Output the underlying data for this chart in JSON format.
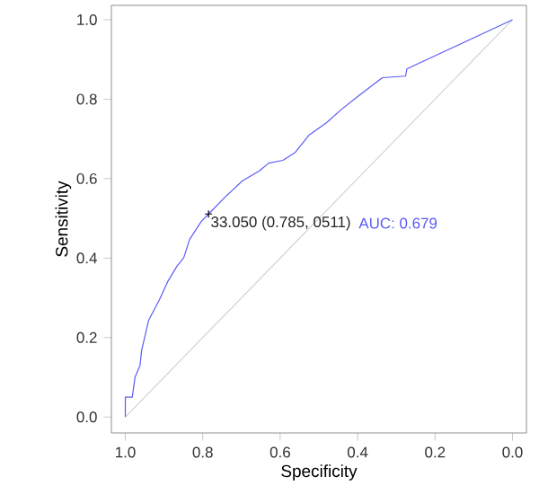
{
  "chart_data": {
    "type": "line",
    "xlabel": "Specificity",
    "ylabel": "Sensitivity",
    "xlim": [
      1.036,
      -0.036
    ],
    "ylim": [
      -0.04,
      1.036
    ],
    "xticks": [
      {
        "value": 1,
        "label": "1.0"
      },
      {
        "value": 0.8,
        "label": "0.8"
      },
      {
        "value": 0.6,
        "label": "0.6"
      },
      {
        "value": 0.4,
        "label": "0.4"
      },
      {
        "value": 0.2,
        "label": "0.2"
      },
      {
        "value": 0,
        "label": "0.0"
      }
    ],
    "yticks": [
      {
        "value": 0,
        "label": "0.0"
      },
      {
        "value": 0.2,
        "label": "0.2"
      },
      {
        "value": 0.4,
        "label": "0.4"
      },
      {
        "value": 0.6,
        "label": "0.6"
      },
      {
        "value": 0.8,
        "label": "0.8"
      },
      {
        "value": 1,
        "label": "1.0"
      }
    ],
    "grid": false,
    "series": [
      {
        "color": "#d0d0d8",
        "x": [
          1,
          0
        ],
        "values": [
          0,
          1
        ]
      },
      {
        "color": "#5b5bf5",
        "x": [
          1,
          1,
          0.982,
          0.975,
          0.962,
          0.958,
          0.94,
          0.912,
          0.891,
          0.867,
          0.849,
          0.834,
          0.804,
          0.785,
          0.744,
          0.698,
          0.653,
          0.63,
          0.593,
          0.562,
          0.525,
          0.48,
          0.442,
          0.397,
          0.336,
          0.276,
          0.273,
          0
        ],
        "values": [
          0,
          0.05,
          0.05,
          0.1,
          0.13,
          0.167,
          0.243,
          0.295,
          0.34,
          0.379,
          0.401,
          0.447,
          0.492,
          0.511,
          0.552,
          0.594,
          0.62,
          0.639,
          0.646,
          0.665,
          0.71,
          0.741,
          0.774,
          0.809,
          0.854,
          0.858,
          0.876,
          1
        ]
      },
      {
        "type": "scatter",
        "color": "#000000",
        "marker": "cross",
        "x": [
          0.785
        ],
        "values": [
          0.511
        ]
      }
    ],
    "annotations": [
      {
        "text": "33.050 (0.785, 0511)",
        "x": 0.785,
        "y": 0.511
      },
      "AUC: 0.679"
    ]
  }
}
